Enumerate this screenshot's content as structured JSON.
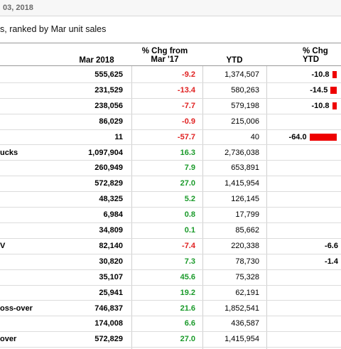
{
  "page": {
    "date_text": "03, 2018",
    "subtitle": "s, ranked by Mar unit sales"
  },
  "table": {
    "headers": {
      "mar": "Mar 2018",
      "chg": "% Chg from Mar '17",
      "ytd": "YTD",
      "ytd_chg": "% Chg YTD"
    },
    "rows": [
      {
        "label": "",
        "mar": "555,625",
        "chg": "-9.2",
        "chg_sign": "neg",
        "ytd": "1,374,507",
        "ytd_chg": "-10.8",
        "ytd_bar": -10.8
      },
      {
        "label": "",
        "mar": "231,529",
        "chg": "-13.4",
        "chg_sign": "neg",
        "ytd": "580,263",
        "ytd_chg": "-14.5",
        "ytd_bar": -14.5
      },
      {
        "label": "",
        "mar": "238,056",
        "chg": "-7.7",
        "chg_sign": "neg",
        "ytd": "579,198",
        "ytd_chg": "-10.8",
        "ytd_bar": -10.8
      },
      {
        "label": "",
        "mar": "86,029",
        "chg": "-0.9",
        "chg_sign": "neg",
        "ytd": "215,006",
        "ytd_chg": "",
        "ytd_bar": null
      },
      {
        "label": "",
        "mar": "11",
        "chg": "-57.7",
        "chg_sign": "neg",
        "ytd": "40",
        "ytd_chg": "-64.0",
        "ytd_bar": -64.0
      },
      {
        "label": "ucks",
        "mar": "1,097,904",
        "chg": "16.3",
        "chg_sign": "pos",
        "ytd": "2,736,038",
        "ytd_chg": "",
        "ytd_bar": null
      },
      {
        "label": "",
        "mar": "260,949",
        "chg": "7.9",
        "chg_sign": "pos",
        "ytd": "653,891",
        "ytd_chg": "",
        "ytd_bar": null
      },
      {
        "label": "",
        "mar": "572,829",
        "chg": "27.0",
        "chg_sign": "pos",
        "ytd": "1,415,954",
        "ytd_chg": "",
        "ytd_bar": null
      },
      {
        "label": "",
        "mar": "48,325",
        "chg": "5.2",
        "chg_sign": "pos",
        "ytd": "126,145",
        "ytd_chg": "",
        "ytd_bar": null
      },
      {
        "label": "",
        "mar": "6,984",
        "chg": "0.8",
        "chg_sign": "pos",
        "ytd": "17,799",
        "ytd_chg": "",
        "ytd_bar": null
      },
      {
        "label": "",
        "mar": "34,809",
        "chg": "0.1",
        "chg_sign": "pos",
        "ytd": "85,662",
        "ytd_chg": "",
        "ytd_bar": null
      },
      {
        "label": "V",
        "mar": "82,140",
        "chg": "-7.4",
        "chg_sign": "neg",
        "ytd": "220,338",
        "ytd_chg": "-6.6",
        "ytd_bar": null
      },
      {
        "label": "",
        "mar": "30,820",
        "chg": "7.3",
        "chg_sign": "pos",
        "ytd": "78,730",
        "ytd_chg": "-1.4",
        "ytd_bar": null
      },
      {
        "label": "",
        "mar": "35,107",
        "chg": "45.6",
        "chg_sign": "pos",
        "ytd": "75,328",
        "ytd_chg": "",
        "ytd_bar": null
      },
      {
        "label": "",
        "mar": "25,941",
        "chg": "19.2",
        "chg_sign": "pos",
        "ytd": "62,191",
        "ytd_chg": "",
        "ytd_bar": null
      },
      {
        "label": "oss-over",
        "mar": "746,837",
        "chg": "21.6",
        "chg_sign": "pos",
        "ytd": "1,852,541",
        "ytd_chg": "",
        "ytd_bar": null
      },
      {
        "label": "",
        "mar": "174,008",
        "chg": "6.6",
        "chg_sign": "pos",
        "ytd": "436,587",
        "ytd_chg": "",
        "ytd_bar": null
      },
      {
        "label": "over",
        "mar": "572,829",
        "chg": "27.0",
        "chg_sign": "pos",
        "ytd": "1,415,954",
        "ytd_chg": "",
        "ytd_bar": null
      }
    ]
  },
  "colors": {
    "negative": "#e02020",
    "positive": "#1a9a2a",
    "bar": "#ee0000"
  }
}
